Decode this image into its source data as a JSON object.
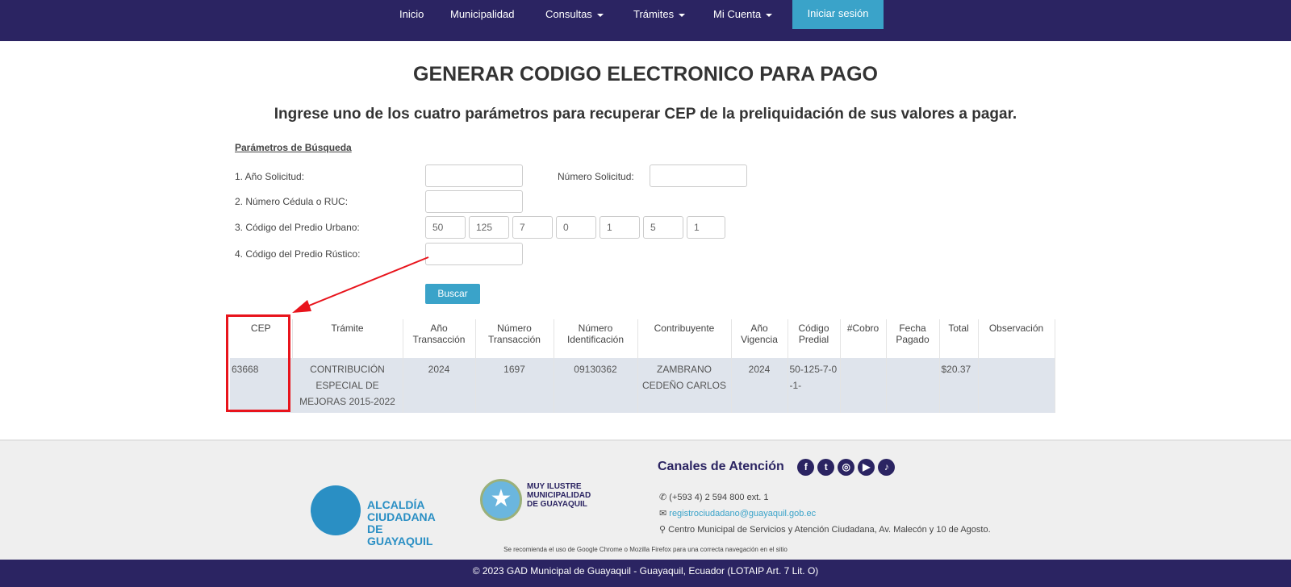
{
  "nav": {
    "items": [
      "Inicio",
      "Municipalidad",
      "Consultas",
      "Trámites",
      "Mi Cuenta"
    ],
    "login": "Iniciar sesión"
  },
  "title": "GENERAR CODIGO ELECTRONICO PARA PAGO",
  "subtitle": "Ingrese uno de los cuatro parámetros para recuperar CEP de la preliquidación de sus valores a pagar.",
  "form": {
    "section": "Parámetros de Búsqueda",
    "anio_label": "1. Año Solicitud:",
    "numero_label": "Número Solicitud:",
    "cedula_label": "2. Número Cédula o RUC:",
    "urbano_label": "3. Código del Predio Urbano:",
    "urbano_values": [
      "50",
      "125",
      "7",
      "0",
      "1",
      "5",
      "1"
    ],
    "rustico_label": "4. Código del Predio Rústico:",
    "search": "Buscar"
  },
  "table": {
    "headers": [
      "CEP",
      "Trámite",
      "Año Transacción",
      "Número Transacción",
      "Número Identificación",
      "Contribuyente",
      "Año Vigencia",
      "Código Predial",
      "#Cobro",
      "Fecha Pagado",
      "Total",
      "Observación"
    ],
    "row": [
      "63668",
      "CONTRIBUCIÓN ESPECIAL DE MEJORAS 2015-2022",
      "2024",
      "1697",
      "09130362",
      "ZAMBRANO CEDEÑO CARLOS",
      "2024",
      "50-125-7-0-1-",
      "",
      "",
      "$20.37",
      ""
    ]
  },
  "annotation_color": "#e8141c",
  "footer": {
    "logo1": "ALCALDÍA CIUDADANA DE GUAYAQUIL",
    "logo2": "MUY ILUSTRE MUNICIPALIDAD DE GUAYAQUIL",
    "channels": "Canales de Atención",
    "phone": "(+593 4) 2 594 800 ext. 1",
    "email": "registrociudadano@guayaquil.gob.ec",
    "address": "Centro Municipal de Servicios y Atención Ciudadana, Av. Malecón y 10 de Agosto.",
    "note": "Se recomienda el uso de Google Chrome o Mozilla Firefox para una correcta navegación en el sitio",
    "copyright": "© 2023 GAD Municipal de Guayaquil - Guayaquil, Ecuador (LOTAIP Art. 7 Lit. O)",
    "social": [
      "facebook-icon",
      "twitter-icon",
      "instagram-icon",
      "youtube-icon",
      "tiktok-icon"
    ]
  }
}
